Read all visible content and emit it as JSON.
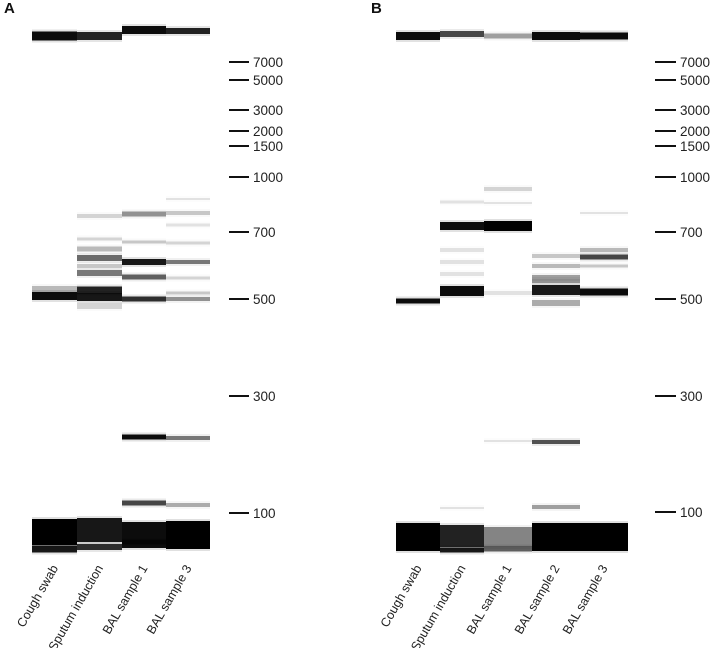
{
  "panels": [
    {
      "label": "A",
      "lanes": [
        {
          "name": "Cough swab",
          "bands": [
            {
              "pos": 36,
              "h": 9,
              "op": 0.95
            },
            {
              "pos": 296,
              "h": 8,
              "op": 0.95
            },
            {
              "pos": 289,
              "h": 6,
              "op": 0.25
            },
            {
              "pos": 532,
              "h": 26,
              "op": 1.0
            },
            {
              "pos": 549,
              "h": 7,
              "op": 0.9
            }
          ]
        },
        {
          "name": "Sputum induction",
          "bands": [
            {
              "pos": 36,
              "h": 8,
              "op": 0.85
            },
            {
              "pos": 216,
              "h": 4,
              "op": 0.15
            },
            {
              "pos": 239,
              "h": 3,
              "op": 0.15
            },
            {
              "pos": 258,
              "h": 6,
              "op": 0.55
            },
            {
              "pos": 249,
              "h": 5,
              "op": 0.25
            },
            {
              "pos": 273,
              "h": 6,
              "op": 0.5
            },
            {
              "pos": 266,
              "h": 4,
              "op": 0.2
            },
            {
              "pos": 290,
              "h": 7,
              "op": 0.85
            },
            {
              "pos": 297,
              "h": 8,
              "op": 0.9
            },
            {
              "pos": 306,
              "h": 6,
              "op": 0.15
            },
            {
              "pos": 530,
              "h": 24,
              "op": 0.9
            },
            {
              "pos": 547,
              "h": 6,
              "op": 0.8
            }
          ]
        },
        {
          "name": "BAL sample 1",
          "bands": [
            {
              "pos": 30,
              "h": 8,
              "op": 0.95
            },
            {
              "pos": 214,
              "h": 5,
              "op": 0.4
            },
            {
              "pos": 242,
              "h": 3,
              "op": 0.2
            },
            {
              "pos": 262,
              "h": 6,
              "op": 0.9
            },
            {
              "pos": 277,
              "h": 5,
              "op": 0.6
            },
            {
              "pos": 299,
              "h": 5,
              "op": 0.8
            },
            {
              "pos": 437,
              "h": 5,
              "op": 0.95
            },
            {
              "pos": 503,
              "h": 5,
              "op": 0.7
            },
            {
              "pos": 535,
              "h": 26,
              "op": 0.95
            },
            {
              "pos": 542,
              "h": 5,
              "op": 0.6
            }
          ]
        },
        {
          "name": "BAL sample 3",
          "bands": [
            {
              "pos": 31,
              "h": 6,
              "op": 0.85
            },
            {
              "pos": 199,
              "h": 2,
              "op": 0.1
            },
            {
              "pos": 213,
              "h": 4,
              "op": 0.2
            },
            {
              "pos": 225,
              "h": 3,
              "op": 0.1
            },
            {
              "pos": 243,
              "h": 3,
              "op": 0.15
            },
            {
              "pos": 262,
              "h": 4,
              "op": 0.5
            },
            {
              "pos": 278,
              "h": 3,
              "op": 0.15
            },
            {
              "pos": 293,
              "h": 3,
              "op": 0.2
            },
            {
              "pos": 299,
              "h": 4,
              "op": 0.4
            },
            {
              "pos": 438,
              "h": 4,
              "op": 0.5
            },
            {
              "pos": 505,
              "h": 4,
              "op": 0.3
            },
            {
              "pos": 535,
              "h": 28,
              "op": 1.0
            }
          ]
        }
      ],
      "ladder": [
        "7000",
        "5000",
        "3000",
        "2000",
        "1500",
        "1000",
        "700",
        "500",
        "300",
        "100"
      ]
    },
    {
      "label": "B",
      "lanes": [
        {
          "name": "Cough swab",
          "bands": [
            {
              "pos": 36,
              "h": 8,
              "op": 0.95
            },
            {
              "pos": 301,
              "h": 5,
              "op": 0.95
            },
            {
              "pos": 537,
              "h": 28,
              "op": 1.0
            }
          ]
        },
        {
          "name": "Sputum induction",
          "bands": [
            {
              "pos": 34,
              "h": 6,
              "op": 0.7
            },
            {
              "pos": 202,
              "h": 3,
              "op": 0.1
            },
            {
              "pos": 226,
              "h": 8,
              "op": 0.95
            },
            {
              "pos": 250,
              "h": 4,
              "op": 0.1
            },
            {
              "pos": 262,
              "h": 4,
              "op": 0.1
            },
            {
              "pos": 274,
              "h": 4,
              "op": 0.1
            },
            {
              "pos": 291,
              "h": 10,
              "op": 0.95
            },
            {
              "pos": 508,
              "h": 2,
              "op": 0.1
            },
            {
              "pos": 536,
              "h": 22,
              "op": 0.85
            },
            {
              "pos": 550,
              "h": 5,
              "op": 0.9
            }
          ]
        },
        {
          "name": "BAL sample 1",
          "bands": [
            {
              "pos": 36,
              "h": 5,
              "op": 0.35
            },
            {
              "pos": 189,
              "h": 4,
              "op": 0.15
            },
            {
              "pos": 203,
              "h": 2,
              "op": 0.1
            },
            {
              "pos": 226,
              "h": 10,
              "op": 1.0
            },
            {
              "pos": 293,
              "h": 4,
              "op": 0.1
            },
            {
              "pos": 441,
              "h": 2,
              "op": 0.1
            },
            {
              "pos": 537,
              "h": 20,
              "op": 0.45
            },
            {
              "pos": 549,
              "h": 5,
              "op": 0.6
            }
          ]
        },
        {
          "name": "BAL sample 2",
          "bands": [
            {
              "pos": 36,
              "h": 8,
              "op": 0.95
            },
            {
              "pos": 256,
              "h": 4,
              "op": 0.2
            },
            {
              "pos": 266,
              "h": 4,
              "op": 0.25
            },
            {
              "pos": 277,
              "h": 4,
              "op": 0.35
            },
            {
              "pos": 290,
              "h": 10,
              "op": 0.9
            },
            {
              "pos": 281,
              "h": 4,
              "op": 0.4
            },
            {
              "pos": 303,
              "h": 6,
              "op": 0.3
            },
            {
              "pos": 442,
              "h": 4,
              "op": 0.65
            },
            {
              "pos": 507,
              "h": 4,
              "op": 0.35
            },
            {
              "pos": 537,
              "h": 28,
              "op": 1.0
            }
          ]
        },
        {
          "name": "BAL sample 3",
          "bands": [
            {
              "pos": 36,
              "h": 7,
              "op": 0.95
            },
            {
              "pos": 213,
              "h": 2,
              "op": 0.1
            },
            {
              "pos": 250,
              "h": 4,
              "op": 0.25
            },
            {
              "pos": 257,
              "h": 5,
              "op": 0.7
            },
            {
              "pos": 266,
              "h": 3,
              "op": 0.2
            },
            {
              "pos": 292,
              "h": 7,
              "op": 0.95
            },
            {
              "pos": 537,
              "h": 28,
              "op": 1.0
            },
            {
              "pos": 541,
              "h": 3,
              "op": 0.6
            }
          ]
        }
      ],
      "ladder": [
        "7000",
        "5000",
        "3000",
        "2000",
        "1500",
        "1000",
        "700",
        "500",
        "300",
        "100"
      ]
    }
  ]
}
